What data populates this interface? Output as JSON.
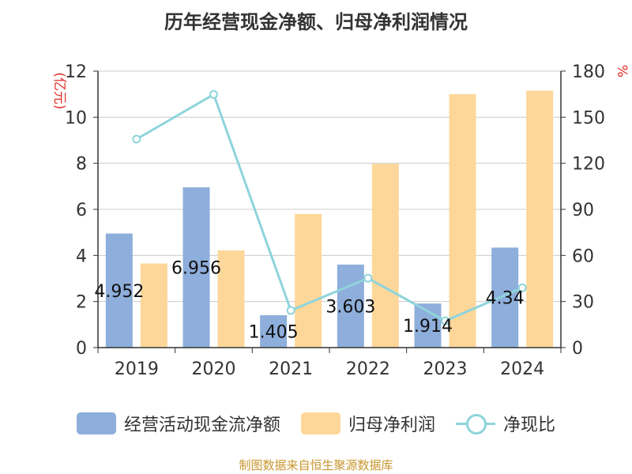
{
  "chart_data": {
    "type": "bar",
    "title": "历年经营现金净额、归母净利润情况",
    "categories": [
      "2019",
      "2020",
      "2021",
      "2022",
      "2023",
      "2024"
    ],
    "series": [
      {
        "name": "经营活动现金流净额",
        "kind": "bar",
        "axis": "left",
        "color": "#8eaedb",
        "values": [
          4.952,
          6.956,
          1.405,
          3.603,
          1.914,
          4.34
        ],
        "labels": [
          "4.952",
          "6.956",
          "1.405",
          "3.603",
          "1.914",
          "4.34"
        ]
      },
      {
        "name": "归母净利润",
        "kind": "bar",
        "axis": "left",
        "color": "#fdd799",
        "values": [
          3.65,
          4.22,
          5.8,
          7.98,
          11.0,
          11.15
        ]
      },
      {
        "name": "净现比",
        "kind": "line",
        "axis": "right",
        "color": "#8ed4dc",
        "values": [
          135.7,
          164.8,
          24.2,
          45.2,
          17.4,
          38.9
        ]
      }
    ],
    "ylabel": "(亿元)",
    "ylabel_right": "%",
    "ylim": [
      0,
      12
    ],
    "yticks": [
      "0",
      "2",
      "4",
      "6",
      "8",
      "10",
      "12"
    ],
    "ylim_right": [
      0,
      180
    ],
    "yticks_right": [
      "0",
      "30",
      "60",
      "90",
      "120",
      "150",
      "180"
    ],
    "grid": true,
    "legend": "bottom"
  },
  "source": "制图数据来自恒生聚源数据库"
}
